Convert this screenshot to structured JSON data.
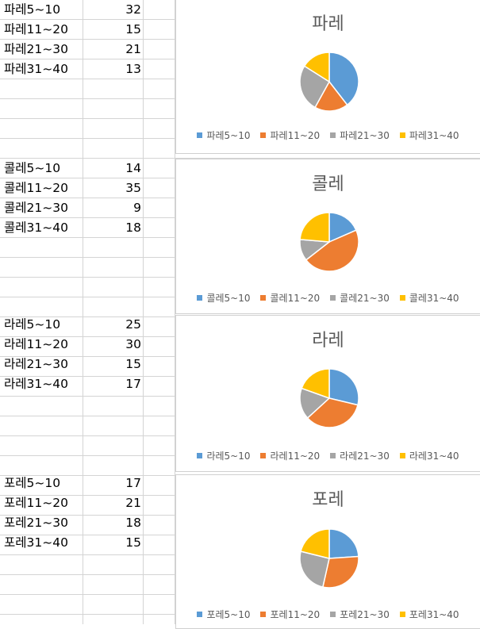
{
  "colors": {
    "s1": "#5b9bd5",
    "s2": "#ed7d31",
    "s3": "#a5a5a5",
    "s4": "#ffc000"
  },
  "tables": [
    {
      "rows": [
        {
          "label": "파레5~10",
          "value": "32"
        },
        {
          "label": "파레11~20",
          "value": "15"
        },
        {
          "label": "파레21~30",
          "value": "21"
        },
        {
          "label": "파레31~40",
          "value": "13"
        }
      ]
    },
    {
      "rows": [
        {
          "label": "콜레5~10",
          "value": "14"
        },
        {
          "label": "콜레11~20",
          "value": "35"
        },
        {
          "label": "콜레21~30",
          "value": "9"
        },
        {
          "label": "콜레31~40",
          "value": "18"
        }
      ]
    },
    {
      "rows": [
        {
          "label": "라레5~10",
          "value": "25"
        },
        {
          "label": "라레11~20",
          "value": "30"
        },
        {
          "label": "라레21~30",
          "value": "15"
        },
        {
          "label": "라레31~40",
          "value": "17"
        }
      ]
    },
    {
      "rows": [
        {
          "label": "포레5~10",
          "value": "17"
        },
        {
          "label": "포레11~20",
          "value": "21"
        },
        {
          "label": "포레21~30",
          "value": "18"
        },
        {
          "label": "포레31~40",
          "value": "15"
        }
      ]
    }
  ],
  "chart_data": [
    {
      "type": "pie",
      "title": "파레",
      "categories": [
        "파레5~10",
        "파레11~20",
        "파레21~30",
        "파레31~40"
      ],
      "values": [
        32,
        15,
        21,
        13
      ],
      "legend": "bottom"
    },
    {
      "type": "pie",
      "title": "콜레",
      "categories": [
        "콜레5~10",
        "콜레11~20",
        "콜레21~30",
        "콜레31~40"
      ],
      "values": [
        14,
        35,
        9,
        18
      ],
      "legend": "bottom"
    },
    {
      "type": "pie",
      "title": "라레",
      "categories": [
        "라레5~10",
        "라레11~20",
        "라레21~30",
        "라레31~40"
      ],
      "values": [
        25,
        30,
        15,
        17
      ],
      "legend": "bottom"
    },
    {
      "type": "pie",
      "title": "포레",
      "categories": [
        "포레5~10",
        "포레11~20",
        "포레21~30",
        "포레31~40"
      ],
      "values": [
        17,
        21,
        18,
        15
      ],
      "legend": "bottom"
    }
  ]
}
